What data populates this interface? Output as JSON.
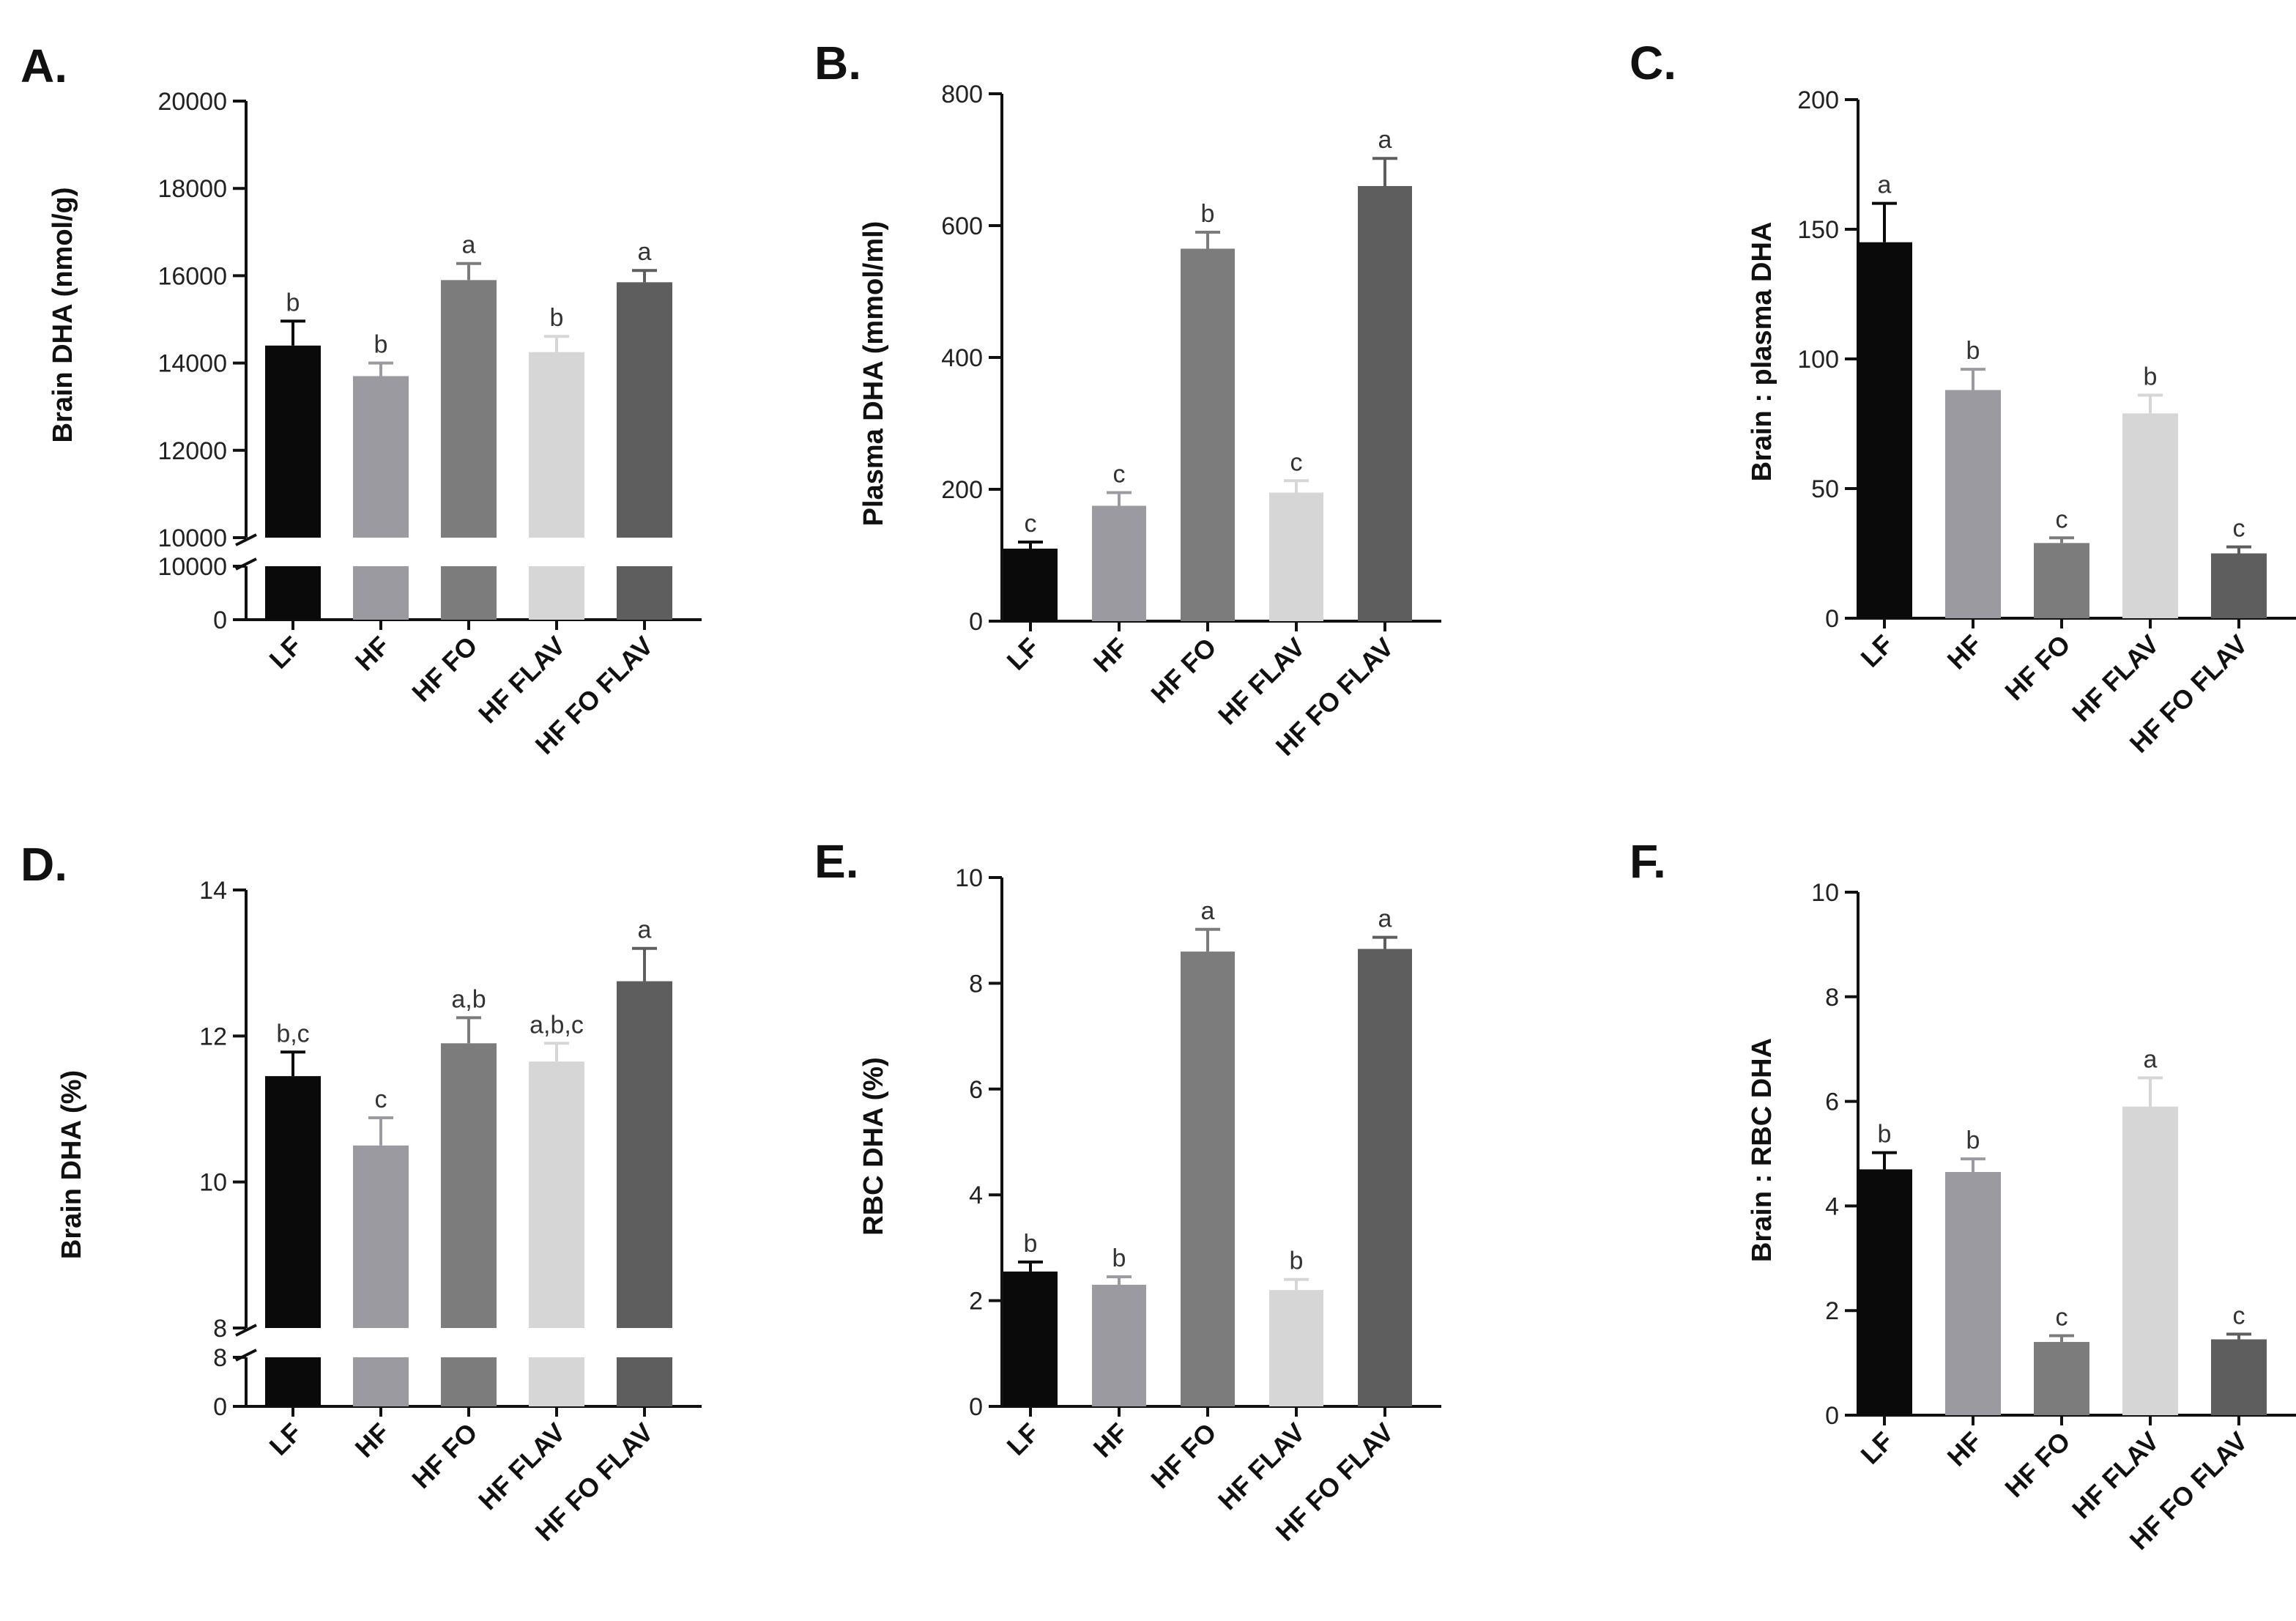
{
  "chart_data": [
    {
      "panel": "A.",
      "type": "bar",
      "ylabel": "Brain DHA (nmol/g)",
      "categories": [
        "LF",
        "HF",
        "HF FO",
        "HF FLAV",
        "HF FO FLAV"
      ],
      "values": [
        14400,
        13700,
        15900,
        14250,
        15850
      ],
      "errors": [
        560,
        300,
        380,
        360,
        270
      ],
      "sig": [
        "b",
        "b",
        "a",
        "b",
        "a"
      ],
      "colors": [
        "#0a0a0a",
        "#9a9aa0",
        "#7c7c7c",
        "#d6d6d6",
        "#5e5e5e"
      ],
      "ylim": [
        10000,
        20000
      ],
      "yticks": [
        "20000",
        "18000",
        "16000",
        "14000",
        "12000",
        "10000"
      ],
      "axis_break": true,
      "break_ticks": [
        "10000",
        "0"
      ]
    },
    {
      "panel": "B.",
      "type": "bar",
      "ylabel": "Plasma DHA (mmol/ml)",
      "categories": [
        "LF",
        "HF",
        "HF FO",
        "HF FLAV",
        "HF FO FLAV"
      ],
      "values": [
        110,
        175,
        565,
        195,
        660
      ],
      "errors": [
        10,
        20,
        25,
        18,
        42
      ],
      "sig": [
        "c",
        "c",
        "b",
        "c",
        "a"
      ],
      "colors": [
        "#0a0a0a",
        "#9a9aa0",
        "#7c7c7c",
        "#d6d6d6",
        "#5e5e5e"
      ],
      "ylim": [
        0,
        800
      ],
      "yticks": [
        "800",
        "600",
        "400",
        "200",
        "0"
      ],
      "axis_break": false
    },
    {
      "panel": "C.",
      "type": "bar",
      "ylabel": "Brain : plasma DHA",
      "categories": [
        "LF",
        "HF",
        "HF FO",
        "HF FLAV",
        "HF FO FLAV"
      ],
      "values": [
        145,
        88,
        29,
        79,
        25
      ],
      "errors": [
        15,
        8,
        2,
        7,
        2.5
      ],
      "sig": [
        "a",
        "b",
        "c",
        "b",
        "c"
      ],
      "colors": [
        "#0a0a0a",
        "#9a9aa0",
        "#7c7c7c",
        "#d6d6d6",
        "#5e5e5e"
      ],
      "ylim": [
        0,
        200
      ],
      "yticks": [
        "200",
        "150",
        "100",
        "50",
        "0"
      ],
      "axis_break": false
    },
    {
      "panel": "D.",
      "type": "bar",
      "ylabel": "Brain DHA (%)",
      "categories": [
        "LF",
        "HF",
        "HF FO",
        "HF FLAV",
        "HF FO FLAV"
      ],
      "values": [
        11.45,
        10.5,
        11.9,
        11.65,
        12.75
      ],
      "errors": [
        0.33,
        0.38,
        0.35,
        0.25,
        0.45
      ],
      "sig": [
        "b,c",
        "c",
        "a,b",
        "a,b,c",
        "a"
      ],
      "colors": [
        "#0a0a0a",
        "#9a9aa0",
        "#7c7c7c",
        "#d6d6d6",
        "#5e5e5e"
      ],
      "ylim": [
        8,
        14
      ],
      "yticks": [
        "14",
        "12",
        "10",
        "8"
      ],
      "axis_break": true,
      "break_ticks": [
        "8",
        "0"
      ]
    },
    {
      "panel": "E.",
      "type": "bar",
      "ylabel": "RBC DHA (%)",
      "categories": [
        "LF",
        "HF",
        "HF FO",
        "HF FLAV",
        "HF FO FLAV"
      ],
      "values": [
        2.55,
        2.3,
        8.6,
        2.2,
        8.65
      ],
      "errors": [
        0.18,
        0.15,
        0.42,
        0.2,
        0.22
      ],
      "sig": [
        "b",
        "b",
        "a",
        "b",
        "a"
      ],
      "colors": [
        "#0a0a0a",
        "#9a9aa0",
        "#7c7c7c",
        "#d6d6d6",
        "#5e5e5e"
      ],
      "ylim": [
        0,
        10
      ],
      "yticks": [
        "10",
        "8",
        "6",
        "4",
        "2",
        "0"
      ],
      "axis_break": false
    },
    {
      "panel": "F.",
      "type": "bar",
      "ylabel": "Brain : RBC DHA",
      "categories": [
        "LF",
        "HF",
        "HF FO",
        "HF FLAV",
        "HF FO FLAV"
      ],
      "values": [
        4.7,
        4.65,
        1.4,
        5.9,
        1.45
      ],
      "errors": [
        0.32,
        0.25,
        0.12,
        0.55,
        0.1
      ],
      "sig": [
        "b",
        "b",
        "c",
        "a",
        "c"
      ],
      "colors": [
        "#0a0a0a",
        "#9a9aa0",
        "#7c7c7c",
        "#d6d6d6",
        "#5e5e5e"
      ],
      "ylim": [
        0,
        10
      ],
      "yticks": [
        "10",
        "8",
        "6",
        "4",
        "2",
        "0"
      ],
      "axis_break": false
    }
  ]
}
